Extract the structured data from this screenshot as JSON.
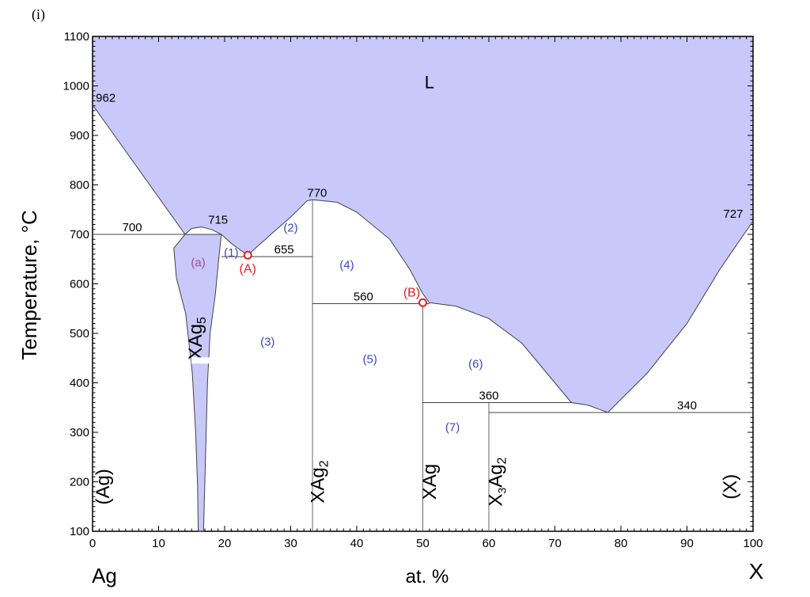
{
  "panel_label": "(i)",
  "chart_data": {
    "type": "phase_diagram",
    "xlabel": "at. %",
    "ylabel": "Temperature, °C",
    "xlim": [
      0,
      100
    ],
    "ylim": [
      100,
      1100
    ],
    "x_ticks": [
      0,
      10,
      20,
      30,
      40,
      50,
      60,
      70,
      80,
      90,
      100
    ],
    "y_ticks": [
      100,
      200,
      300,
      400,
      500,
      600,
      700,
      800,
      900,
      1000,
      1100
    ],
    "left_component": "Ag",
    "right_component": "X",
    "liquid_color": "#c8c8fa",
    "temperature_labels": [
      {
        "text": "962",
        "x": 2,
        "y": 962
      },
      {
        "text": "700",
        "x": 6,
        "y": 700
      },
      {
        "text": "715",
        "x": 19,
        "y": 715
      },
      {
        "text": "655",
        "x": 29,
        "y": 655
      },
      {
        "text": "770",
        "x": 34,
        "y": 770
      },
      {
        "text": "560",
        "x": 41,
        "y": 560
      },
      {
        "text": "360",
        "x": 60,
        "y": 360
      },
      {
        "text": "340",
        "x": 90,
        "y": 340
      },
      {
        "text": "727",
        "x": 97,
        "y": 727
      }
    ],
    "region_labels": [
      {
        "text": "L",
        "x": 51,
        "y": 1005,
        "color": "#000000"
      },
      {
        "text": "(a)",
        "x": 16,
        "y": 645,
        "color": "#a04aa0"
      },
      {
        "text": "(1)",
        "x": 21,
        "y": 665,
        "color": "#3a47c8"
      },
      {
        "text": "(2)",
        "x": 30,
        "y": 715,
        "color": "#3a47c8"
      },
      {
        "text": "(3)",
        "x": 26.5,
        "y": 485,
        "color": "#3a47c8"
      },
      {
        "text": "(4)",
        "x": 38.5,
        "y": 640,
        "color": "#3a47c8"
      },
      {
        "text": "(5)",
        "x": 42,
        "y": 450,
        "color": "#3a47c8"
      },
      {
        "text": "(6)",
        "x": 58,
        "y": 440,
        "color": "#3a47c8"
      },
      {
        "text": "(7)",
        "x": 54.5,
        "y": 312,
        "color": "#3a47c8"
      }
    ],
    "points": [
      {
        "label": "(A)",
        "x": 23.5,
        "y": 658,
        "color": "#e02020"
      },
      {
        "label": "(B)",
        "x": 50,
        "y": 562,
        "color": "#e02020"
      }
    ],
    "phase_labels": [
      {
        "text": "(Ag)",
        "x": 2.5,
        "y": 190
      },
      {
        "text": "XAg5",
        "x": 16.5,
        "y": 490
      },
      {
        "text": "XAg2",
        "x": 35,
        "y": 200
      },
      {
        "text": "XAg",
        "x": 52,
        "y": 200
      },
      {
        "text": "X3Ag2",
        "x": 62,
        "y": 200
      },
      {
        "text": "(X)",
        "x": 97.5,
        "y": 190
      }
    ],
    "vertical_lines_x": [
      33.3,
      50,
      60
    ],
    "horizontal_lines": [
      {
        "x1": 0,
        "x2": 14,
        "y": 700
      },
      {
        "x1": 19.5,
        "x2": 33.3,
        "y": 655
      },
      {
        "x1": 33.3,
        "x2": 51,
        "y": 560
      },
      {
        "x1": 50,
        "x2": 72.5,
        "y": 360
      },
      {
        "x1": 60,
        "x2": 100,
        "y": 340
      }
    ],
    "liquidus_left": [
      [
        0,
        962
      ],
      [
        14,
        700
      ]
    ],
    "dome_715": [
      [
        14,
        700
      ],
      [
        15,
        712
      ],
      [
        16.5,
        715
      ],
      [
        18,
        710
      ],
      [
        19.5,
        700
      ],
      [
        21,
        682
      ],
      [
        22.5,
        667
      ],
      [
        23.5,
        658
      ]
    ],
    "dome_770": [
      [
        23.5,
        658
      ],
      [
        27,
        700
      ],
      [
        30,
        735
      ],
      [
        32.5,
        768
      ],
      [
        33.3,
        770
      ],
      [
        37,
        765
      ],
      [
        40,
        745
      ],
      [
        45,
        690
      ],
      [
        48,
        630
      ],
      [
        50,
        580
      ],
      [
        51,
        562
      ]
    ],
    "liquidus_6": [
      [
        51,
        562
      ],
      [
        55,
        555
      ],
      [
        60,
        530
      ],
      [
        65,
        480
      ],
      [
        70,
        400
      ],
      [
        72.5,
        360
      ],
      [
        75,
        355
      ],
      [
        78,
        340
      ]
    ],
    "liquidus_right": [
      [
        78,
        340
      ],
      [
        84,
        420
      ],
      [
        90,
        520
      ],
      [
        95,
        630
      ],
      [
        100,
        727
      ]
    ],
    "xag5_phase": [
      [
        14,
        700
      ],
      [
        12.3,
        672
      ],
      [
        12.7,
        612
      ],
      [
        14.1,
        540
      ],
      [
        15.1,
        420
      ],
      [
        15.6,
        300
      ],
      [
        15.9,
        190
      ],
      [
        16,
        100
      ],
      [
        16.8,
        100
      ],
      [
        17.1,
        250
      ],
      [
        17.4,
        400
      ],
      [
        17.8,
        500
      ],
      [
        18.6,
        580
      ],
      [
        19.1,
        650
      ],
      [
        19.5,
        700
      ]
    ]
  }
}
